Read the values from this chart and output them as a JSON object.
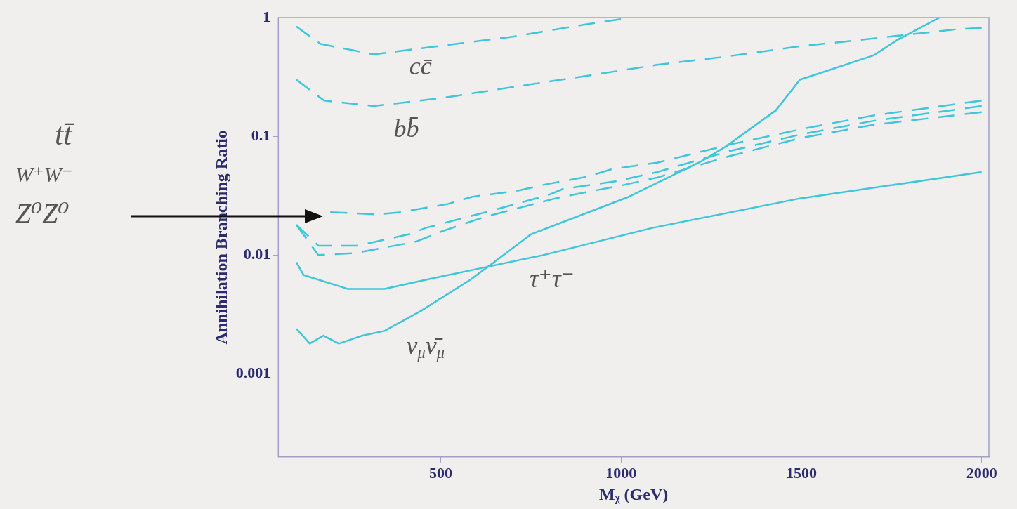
{
  "chart_data": {
    "type": "line",
    "ylabel": "Annihilation Branching Ratio",
    "xlabel": "Mᵪ (GeV)",
    "xlim": [
      50,
      2020
    ],
    "xticks": [
      500,
      1000,
      1500,
      2000
    ],
    "ylim": [
      0.0002,
      1
    ],
    "yticks": [
      1,
      0.1,
      0.01,
      0.001
    ],
    "log": "y",
    "grid": false,
    "legend": false,
    "marker": "none",
    "series": [
      {
        "color": "#3ec6dc",
        "line_style": "dashed",
        "x": [
          100,
          167,
          314,
          503,
          700,
          896,
          1000
        ],
        "values": [
          0.84,
          0.6,
          0.49,
          0.58,
          0.69,
          0.87,
          0.97
        ]
      },
      {
        "color": "#3ec6dc",
        "line_style": "dashed",
        "x": [
          100,
          177,
          314,
          503,
          700,
          896,
          1100,
          1293,
          1490,
          1686,
          1936,
          2000
        ],
        "values": [
          0.3,
          0.2,
          0.18,
          0.21,
          0.26,
          0.32,
          0.4,
          0.47,
          0.57,
          0.66,
          0.8,
          0.82
        ]
      },
      {
        "color": "#3ec6dc",
        "line_style": "dashed",
        "x": [
          194,
          324,
          391,
          521,
          588,
          717,
          784,
          910,
          975,
          1100,
          1300,
          1500,
          1700,
          2000
        ],
        "values": [
          0.023,
          0.022,
          0.023,
          0.027,
          0.031,
          0.035,
          0.039,
          0.046,
          0.053,
          0.06,
          0.085,
          0.115,
          0.15,
          0.2
        ]
      },
      {
        "color": "#3ec6dc",
        "line_style": "dashed",
        "x": [
          100,
          161,
          269,
          413,
          460,
          601,
          648,
          798,
          839,
          989,
          1100,
          1300,
          1500,
          1700,
          2000
        ],
        "values": [
          0.018,
          0.012,
          0.012,
          0.015,
          0.017,
          0.022,
          0.024,
          0.032,
          0.036,
          0.042,
          0.05,
          0.075,
          0.104,
          0.135,
          0.18
        ]
      },
      {
        "color": "#3ec6dc",
        "line_style": "dashed",
        "x": [
          100,
          161,
          263,
          432,
          507,
          623,
          648,
          818,
          839,
          1008,
          1100,
          1300,
          1500,
          1700,
          2000
        ],
        "values": [
          0.018,
          0.01,
          0.0104,
          0.013,
          0.016,
          0.021,
          0.022,
          0.03,
          0.031,
          0.039,
          0.045,
          0.068,
          0.097,
          0.125,
          0.16
        ]
      },
      {
        "color": "#3ec6dc",
        "line_style": "solid",
        "x": [
          100,
          120,
          242,
          344,
          479,
          615,
          784,
          1089,
          1496,
          2000
        ],
        "values": [
          0.0087,
          0.0068,
          0.0052,
          0.0052,
          0.0064,
          0.0078,
          0.01,
          0.017,
          0.03,
          0.05
        ]
      },
      {
        "color": "#3ec6dc",
        "line_style": "solid",
        "x": [
          100,
          137,
          175,
          218,
          283,
          344,
          446,
          582,
          648,
          751,
          1022,
          1224,
          1293,
          1429,
          1496,
          1551,
          1700,
          1767,
          1883
        ],
        "values": [
          0.0024,
          0.0018,
          0.0021,
          0.0018,
          0.0021,
          0.0023,
          0.0034,
          0.0062,
          0.0087,
          0.015,
          0.031,
          0.062,
          0.083,
          0.165,
          0.3,
          0.34,
          0.48,
          0.65,
          1
        ]
      }
    ],
    "annotations": [
      "cc̄",
      "bb̄",
      "τ⁺τ⁻",
      "ν$_{μ}$ν̄$_{μ}$",
      "tt̄",
      "W⁺W⁻",
      "Z⁰Z⁰"
    ]
  }
}
